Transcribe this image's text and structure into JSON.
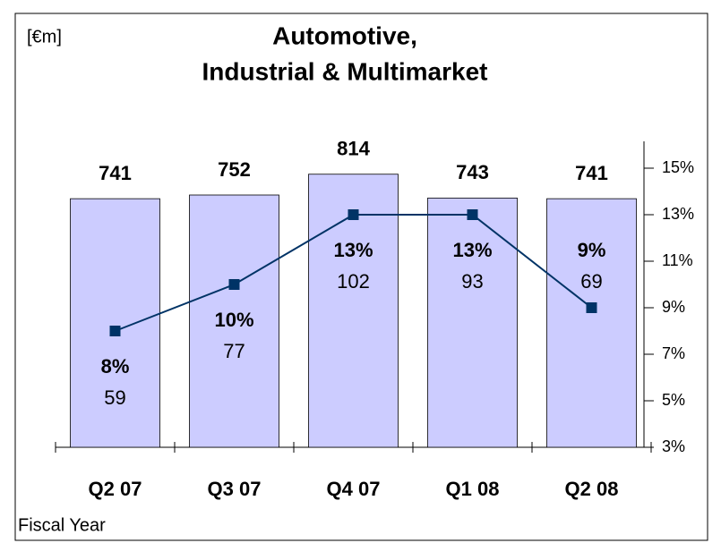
{
  "chart_data": {
    "type": "bar",
    "title": [
      "Automotive,",
      "Industrial & Multimarket"
    ],
    "unit_label": "[€m]",
    "x_label": "Fiscal Year",
    "categories": [
      "Q2 07",
      "Q3 07",
      "Q4 07",
      "Q1 08",
      "Q2 08"
    ],
    "series": [
      {
        "type": "bar",
        "color": "#ccccff",
        "values": [
          741,
          752,
          814,
          743,
          741
        ]
      },
      {
        "type": "line",
        "axis": "y2",
        "color": "#003366",
        "values": [
          8,
          10,
          13,
          13,
          9
        ],
        "value_labels": [
          "8%",
          "10%",
          "13%",
          "13%",
          "9%"
        ]
      },
      {
        "type": "text",
        "values": [
          59,
          77,
          102,
          93,
          69
        ]
      }
    ],
    "ylim": [
      0,
      832
    ],
    "y2lim": [
      3,
      15
    ],
    "y2ticks": [
      {
        "value": 3,
        "label": "3%"
      },
      {
        "value": 5,
        "label": "5%"
      },
      {
        "value": 7,
        "label": "7%"
      },
      {
        "value": 9,
        "label": "9%"
      },
      {
        "value": 11,
        "label": "11%"
      },
      {
        "value": 13,
        "label": "13%"
      },
      {
        "value": 15,
        "label": "15%"
      }
    ]
  }
}
